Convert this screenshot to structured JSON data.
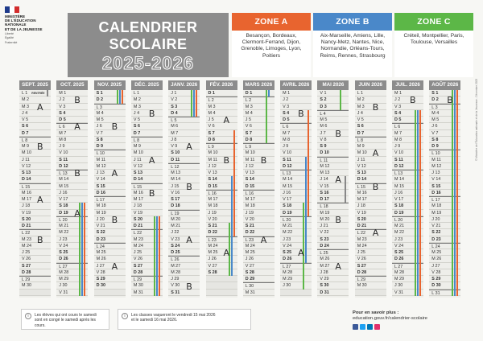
{
  "logo": {
    "lines": [
      "Ministère",
      "de l'Éducation",
      "nationale",
      "et de la Jeunesse"
    ],
    "motto": [
      "Liberté",
      "Égalité",
      "Fraternité"
    ]
  },
  "header": {
    "title_line1": "CALENDRIER",
    "title_line2": "SCOLAIRE",
    "year": "2025-2026"
  },
  "zones": [
    {
      "name": "ZONE A",
      "color": "#e8642f",
      "cities": "Besançon, Bordeaux, Clermont-Ferrand, Dijon, Grenoble, Limoges, Lyon, Poitiers"
    },
    {
      "name": "ZONE B",
      "color": "#4a88c9",
      "cities": "Aix-Marseille, Amiens, Lille, Nancy-Metz, Nantes, Nice, Normandie, Orléans-Tours, Reims, Rennes, Strasbourg"
    },
    {
      "name": "ZONE C",
      "color": "#5cb747",
      "cities": "Créteil, Montpellier, Paris, Toulouse, Versailles"
    }
  ],
  "months": [
    {
      "label": "SEPT. 2025",
      "start": 1,
      "days": 30
    },
    {
      "label": "OCT. 2025",
      "start": 3,
      "days": 31
    },
    {
      "label": "NOV. 2025",
      "start": 6,
      "days": 30
    },
    {
      "label": "DÉC. 2025",
      "start": 1,
      "days": 31
    },
    {
      "label": "JANV. 2026",
      "start": 4,
      "days": 31
    },
    {
      "label": "FÉV. 2026",
      "start": 7,
      "days": 28
    },
    {
      "label": "MARS 2026",
      "start": 7,
      "days": 31
    },
    {
      "label": "AVRIL 2026",
      "start": 3,
      "days": 30
    },
    {
      "label": "MAI 2026",
      "start": 5,
      "days": 31
    },
    {
      "label": "JUIN 2026",
      "start": 1,
      "days": 30
    },
    {
      "label": "JUIL. 2026",
      "start": 3,
      "days": 31
    },
    {
      "label": "AOÛT 2026",
      "start": 6,
      "days": 31
    }
  ],
  "weekday_letters": [
    "L",
    "M",
    "M",
    "J",
    "V",
    "S",
    "D"
  ],
  "first_day_note": "RENTRÉE",
  "handwriting": [
    {
      "m": 0,
      "d": 3,
      "t": "A"
    },
    {
      "m": 0,
      "d": 9,
      "t": "B"
    },
    {
      "m": 0,
      "d": 17,
      "t": "A"
    },
    {
      "m": 0,
      "d": 23,
      "t": "B"
    },
    {
      "m": 1,
      "d": 2,
      "t": "B"
    },
    {
      "m": 1,
      "d": 6,
      "t": "A"
    },
    {
      "m": 1,
      "d": 13,
      "t": "B"
    },
    {
      "m": 1,
      "d": 19,
      "t": "A"
    },
    {
      "m": 2,
      "d": 6,
      "t": "B"
    },
    {
      "m": 2,
      "d": 13,
      "t": "A"
    },
    {
      "m": 2,
      "d": 20,
      "t": "B"
    },
    {
      "m": 2,
      "d": 27,
      "t": "A"
    },
    {
      "m": 3,
      "d": 4,
      "t": "B"
    },
    {
      "m": 3,
      "d": 11,
      "t": "A"
    },
    {
      "m": 3,
      "d": 16,
      "t": "B"
    },
    {
      "m": 4,
      "d": 9,
      "t": "A"
    },
    {
      "m": 4,
      "d": 15,
      "t": "B"
    },
    {
      "m": 4,
      "d": 23,
      "t": "A"
    },
    {
      "m": 4,
      "d": 30,
      "t": "B"
    },
    {
      "m": 5,
      "d": 5,
      "t": "A"
    },
    {
      "m": 5,
      "d": 11,
      "t": "B"
    },
    {
      "m": 5,
      "d": 25,
      "t": "A"
    },
    {
      "m": 6,
      "d": 11,
      "t": "B"
    },
    {
      "m": 6,
      "d": 23,
      "t": "A"
    },
    {
      "m": 7,
      "d": 4,
      "t": "B"
    },
    {
      "m": 7,
      "d": 25,
      "t": "A"
    },
    {
      "m": 8,
      "d": 7,
      "t": "B"
    },
    {
      "m": 8,
      "d": 14,
      "t": "A"
    },
    {
      "m": 8,
      "d": 20,
      "t": "B"
    },
    {
      "m": 8,
      "d": 27,
      "t": "A"
    },
    {
      "m": 9,
      "d": 3,
      "t": "B"
    },
    {
      "m": 9,
      "d": 10,
      "t": "A"
    },
    {
      "m": 9,
      "d": 15,
      "t": "B"
    },
    {
      "m": 9,
      "d": 22,
      "t": "A"
    },
    {
      "m": 10,
      "d": 2,
      "t": "B"
    },
    {
      "m": 11,
      "d": 2,
      "t": "B"
    }
  ],
  "holiday_bars": [
    {
      "m": 0,
      "from": 1,
      "to": 1,
      "c": "#888888",
      "s": 0
    },
    {
      "m": 1,
      "from": 18,
      "to": 31,
      "c": "#e8642f",
      "s": 0
    },
    {
      "m": 1,
      "from": 18,
      "to": 31,
      "c": "#4a88c9",
      "s": 1
    },
    {
      "m": 1,
      "from": 18,
      "to": 31,
      "c": "#5cb747",
      "s": 2
    },
    {
      "m": 2,
      "from": 1,
      "to": 2,
      "c": "#e8642f",
      "s": 0
    },
    {
      "m": 2,
      "from": 1,
      "to": 2,
      "c": "#4a88c9",
      "s": 1
    },
    {
      "m": 2,
      "from": 1,
      "to": 2,
      "c": "#5cb747",
      "s": 2
    },
    {
      "m": 3,
      "from": 20,
      "to": 31,
      "c": "#e8642f",
      "s": 0
    },
    {
      "m": 3,
      "from": 20,
      "to": 31,
      "c": "#4a88c9",
      "s": 1
    },
    {
      "m": 3,
      "from": 20,
      "to": 31,
      "c": "#5cb747",
      "s": 2
    },
    {
      "m": 4,
      "from": 1,
      "to": 4,
      "c": "#e8642f",
      "s": 0
    },
    {
      "m": 4,
      "from": 1,
      "to": 4,
      "c": "#4a88c9",
      "s": 1
    },
    {
      "m": 4,
      "from": 1,
      "to": 4,
      "c": "#5cb747",
      "s": 2
    },
    {
      "m": 5,
      "from": 7,
      "to": 22,
      "c": "#e8642f",
      "s": 0
    },
    {
      "m": 5,
      "from": 14,
      "to": 28,
      "c": "#4a88c9",
      "s": 1
    },
    {
      "m": 5,
      "from": 21,
      "to": 28,
      "c": "#5cb747",
      "s": 2
    },
    {
      "m": 6,
      "from": 1,
      "to": 8,
      "c": "#5cb747",
      "s": 2
    },
    {
      "m": 6,
      "from": 1,
      "to": 1,
      "c": "#4a88c9",
      "s": 1
    },
    {
      "m": 7,
      "from": 4,
      "to": 19,
      "c": "#e8642f",
      "s": 0
    },
    {
      "m": 7,
      "from": 11,
      "to": 26,
      "c": "#4a88c9",
      "s": 1
    },
    {
      "m": 7,
      "from": 18,
      "to": 30,
      "c": "#5cb747",
      "s": 2
    },
    {
      "m": 8,
      "from": 1,
      "to": 3,
      "c": "#5cb747",
      "s": 2
    },
    {
      "m": 8,
      "from": 14,
      "to": 17,
      "c": "#888888",
      "s": 0
    },
    {
      "m": 10,
      "from": 4,
      "to": 31,
      "c": "#e8642f",
      "s": 0
    },
    {
      "m": 10,
      "from": 4,
      "to": 31,
      "c": "#4a88c9",
      "s": 1
    },
    {
      "m": 10,
      "from": 4,
      "to": 31,
      "c": "#5cb747",
      "s": 2
    },
    {
      "m": 11,
      "from": 1,
      "to": 31,
      "c": "#e8642f",
      "s": 0
    },
    {
      "m": 11,
      "from": 1,
      "to": 31,
      "c": "#4a88c9",
      "s": 1
    },
    {
      "m": 11,
      "from": 1,
      "to": 31,
      "c": "#5cb747",
      "s": 2
    }
  ],
  "side_note": "© Ministère de l'Éducation nationale et de la Jeunesse - Décembre 2023",
  "notes": {
    "left": "Les élèves qui ont cours le samedi sont en congé le samedi après les cours.",
    "middle_1": "Les classes vaqueront le vendredi 15 mai 2026",
    "middle_2": "et le samedi 16 mai 2026."
  },
  "more_info": {
    "title": "Pour en savoir plus :",
    "url": "education.gouv.fr/calendrier-scolaire"
  },
  "social_colors": [
    "#3b5998",
    "#1da1f2",
    "#0077b5",
    "#e1306c"
  ]
}
